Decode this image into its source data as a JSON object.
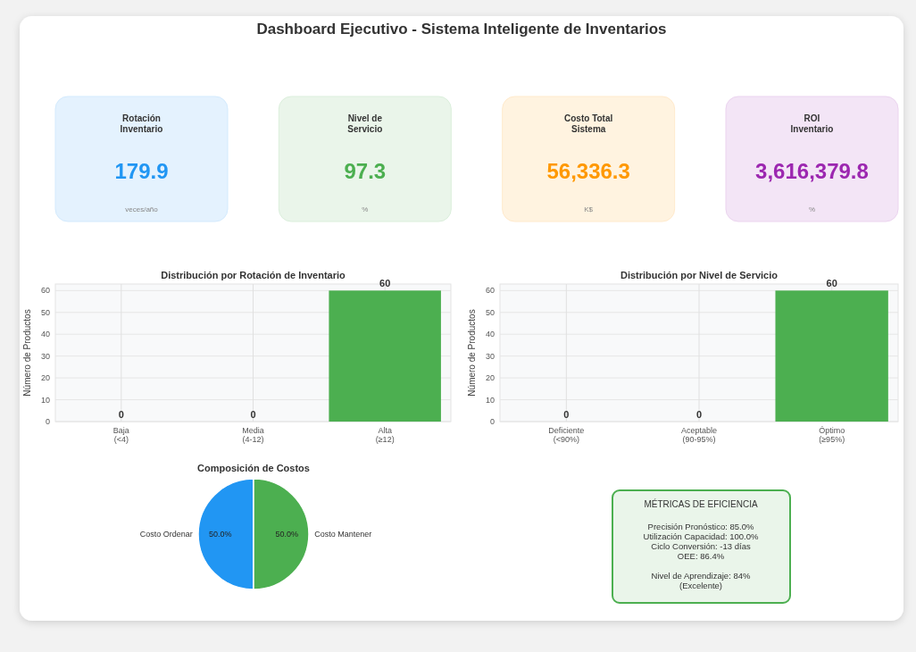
{
  "chart_data": [
    {
      "type": "other",
      "title": "Dashboard Ejecutivo - Sistema Inteligente de Inventarios",
      "annotations": [
        "Rotación\nInventario",
        "179.9",
        "veces/año",
        "Nivel de\nServicio",
        "97.3",
        "%",
        "Costo Total\nSistema",
        "56,336.3",
        "K$",
        "ROI\nInventario",
        "3,616,379.8",
        "%"
      ],
      "colors": [
        "#2196f3",
        "#4caf50",
        "#ff9800",
        "#9c27b0"
      ]
    },
    {
      "type": "bar",
      "title": "Distribución por Rotación de Inventario",
      "ylabel": "Número de Productos",
      "categories": [
        "Baja\n(<4)",
        "Media\n(4-12)",
        "Alta\n(≥12)"
      ],
      "values": [
        0,
        0,
        60
      ],
      "color": "#4caf50",
      "ylim": [
        0,
        63
      ],
      "yticks": [
        0,
        10,
        20,
        30,
        40,
        50,
        60
      ],
      "grid": true,
      "data_labels": true
    },
    {
      "type": "bar",
      "title": "Distribución por Nivel de Servicio",
      "ylabel": "Número de Productos",
      "categories": [
        "Deficiente\n(<90%)",
        "Aceptable\n(90-95%)",
        "Óptimo\n(≥95%)"
      ],
      "values": [
        0,
        0,
        60
      ],
      "color": "#4caf50",
      "ylim": [
        0,
        63
      ],
      "yticks": [
        0,
        10,
        20,
        30,
        40,
        50,
        60
      ],
      "grid": true,
      "data_labels": true
    },
    {
      "type": "pie",
      "title": "Composición de Costos",
      "categories": [
        "Costo Ordenar",
        "Costo Mantener"
      ],
      "values": [
        50,
        50
      ],
      "colors": [
        "#2196f3",
        "#4caf50"
      ],
      "value_labels": [
        "50.0%",
        "50.0%"
      ]
    },
    {
      "type": "other",
      "title": "MÉTRICAS DE EFICIENCIA",
      "annotations": [
        "Precisión Pronóstico: 85.0%",
        "Utilización Capacidad: 100.0%",
        "Ciclo Conversión: -13 días",
        "OEE: 86.4%",
        "Nivel de Aprendizaje: 84%\n(Excelente)"
      ],
      "colors": [
        "#4caf50"
      ]
    }
  ]
}
